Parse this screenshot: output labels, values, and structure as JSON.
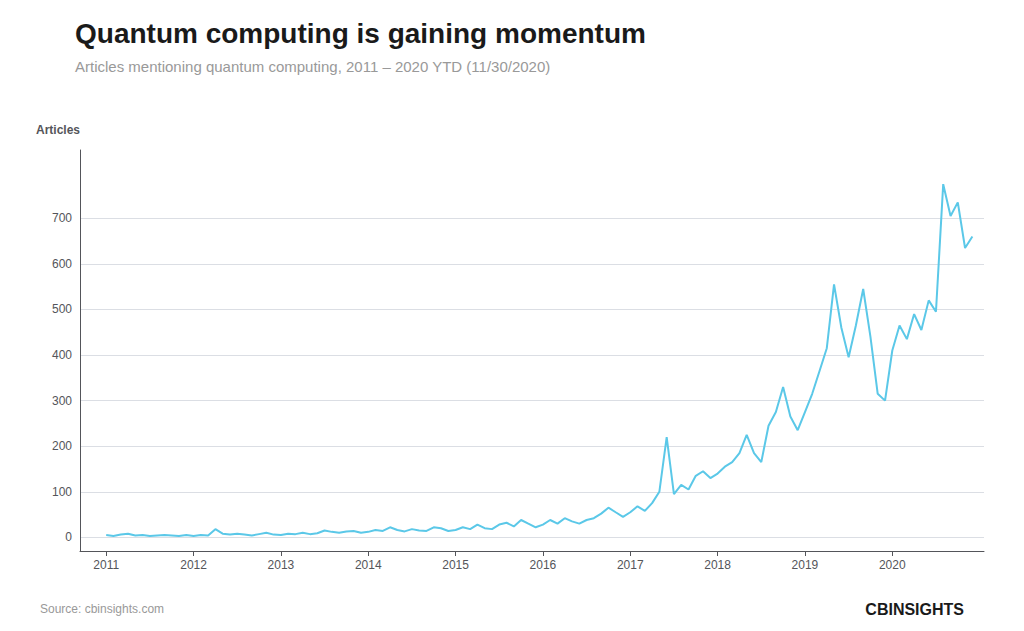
{
  "chart_data": {
    "type": "line",
    "title": "Quantum computing is gaining momentum",
    "subtitle": "Articles mentioning quantum computing, 2011 – 2020 YTD (11/30/2020)",
    "ylabel": "Articles",
    "source": "Source: cbinsights.com",
    "annotations": [
      "CBINSIGHTS"
    ],
    "color": "#5bc8e8",
    "grid": true,
    "xlim": [
      2010.7,
      2021.05
    ],
    "xticks": [
      2011,
      2012,
      2013,
      2014,
      2015,
      2016,
      2017,
      2018,
      2019,
      2020
    ],
    "ylim": [
      -30,
      850
    ],
    "yticks": [
      0,
      100,
      200,
      300,
      400,
      500,
      600,
      700
    ],
    "x": [
      2011.0,
      2011.083,
      2011.167,
      2011.25,
      2011.333,
      2011.417,
      2011.5,
      2011.583,
      2011.667,
      2011.75,
      2011.833,
      2011.917,
      2012.0,
      2012.083,
      2012.167,
      2012.25,
      2012.333,
      2012.417,
      2012.5,
      2012.583,
      2012.667,
      2012.75,
      2012.833,
      2012.917,
      2013.0,
      2013.083,
      2013.167,
      2013.25,
      2013.333,
      2013.417,
      2013.5,
      2013.583,
      2013.667,
      2013.75,
      2013.833,
      2013.917,
      2014.0,
      2014.083,
      2014.167,
      2014.25,
      2014.333,
      2014.417,
      2014.5,
      2014.583,
      2014.667,
      2014.75,
      2014.833,
      2014.917,
      2015.0,
      2015.083,
      2015.167,
      2015.25,
      2015.333,
      2015.417,
      2015.5,
      2015.583,
      2015.667,
      2015.75,
      2015.833,
      2015.917,
      2016.0,
      2016.083,
      2016.167,
      2016.25,
      2016.333,
      2016.417,
      2016.5,
      2016.583,
      2016.667,
      2016.75,
      2016.833,
      2016.917,
      2017.0,
      2017.083,
      2017.167,
      2017.25,
      2017.333,
      2017.417,
      2017.5,
      2017.583,
      2017.667,
      2017.75,
      2017.833,
      2017.917,
      2018.0,
      2018.083,
      2018.167,
      2018.25,
      2018.333,
      2018.417,
      2018.5,
      2018.583,
      2018.667,
      2018.75,
      2018.833,
      2018.917,
      2019.0,
      2019.083,
      2019.167,
      2019.25,
      2019.333,
      2019.417,
      2019.5,
      2019.583,
      2019.667,
      2019.75,
      2019.833,
      2019.917,
      2020.0,
      2020.083,
      2020.167,
      2020.25,
      2020.333,
      2020.417,
      2020.5,
      2020.583,
      2020.667,
      2020.75,
      2020.833,
      2020.917
    ],
    "values": [
      5,
      3,
      6,
      8,
      4,
      5,
      3,
      4,
      5,
      4,
      3,
      5,
      3,
      5,
      4,
      18,
      8,
      6,
      8,
      6,
      4,
      7,
      10,
      6,
      5,
      8,
      7,
      10,
      7,
      9,
      15,
      12,
      10,
      13,
      14,
      10,
      12,
      16,
      14,
      22,
      16,
      13,
      18,
      15,
      14,
      22,
      20,
      14,
      16,
      22,
      18,
      28,
      20,
      18,
      28,
      32,
      24,
      38,
      30,
      22,
      28,
      38,
      30,
      42,
      35,
      30,
      38,
      42,
      52,
      65,
      55,
      45,
      55,
      68,
      58,
      75,
      100,
      220,
      95,
      115,
      105,
      135,
      145,
      130,
      140,
      155,
      165,
      185,
      225,
      185,
      165,
      245,
      275,
      330,
      265,
      235,
      275,
      315,
      365,
      415,
      555,
      460,
      395,
      465,
      545,
      440,
      315,
      300,
      410,
      465,
      435,
      490,
      455,
      520,
      495,
      775,
      705,
      735,
      635,
      660
    ]
  }
}
